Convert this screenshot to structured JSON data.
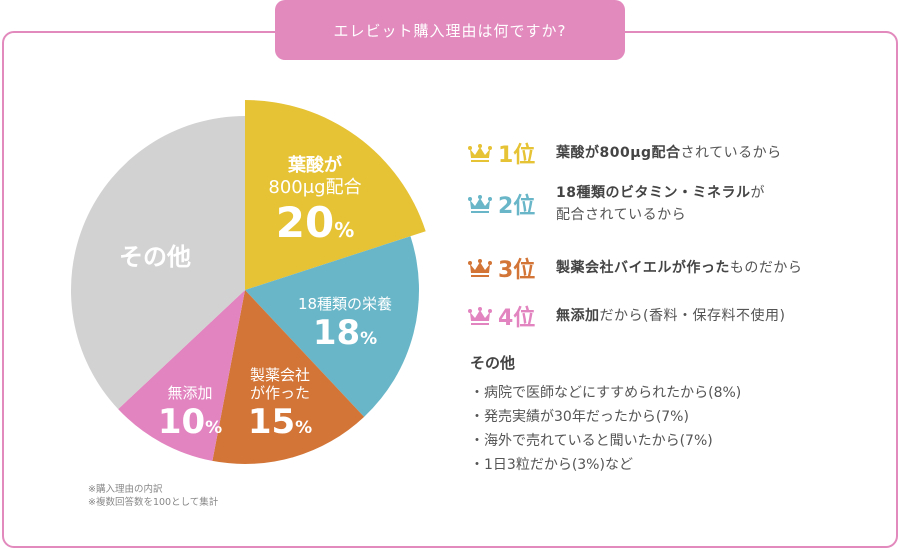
{
  "title": "エレビット購入理由は何ですか?",
  "chart_data": {
    "type": "pie",
    "start": "12 o'clock, clockwise",
    "slices": [
      {
        "label_lines": [
          "葉酸が",
          "800μg配合"
        ],
        "value": 20,
        "pct": "20",
        "color": "#e6c235",
        "exploded": true
      },
      {
        "label_lines": [
          "18種類の栄養"
        ],
        "value": 18,
        "pct": "18",
        "color": "#68b6c8"
      },
      {
        "label_lines": [
          "製薬会社",
          "が作った"
        ],
        "value": 15,
        "pct": "15",
        "color": "#d27537"
      },
      {
        "label_lines": [
          "無添加"
        ],
        "value": 10,
        "pct": "10",
        "color": "#e284bf"
      },
      {
        "label_lines": [
          "その他"
        ],
        "value": 37,
        "color": "#d2d2d2"
      }
    ],
    "unit": "%"
  },
  "ranking": [
    {
      "rank": "1位",
      "color": "#e6c235",
      "bold": "葉酸が800μg配合",
      "rest": "されているから"
    },
    {
      "rank": "2位",
      "color": "#68b6c8",
      "bold": "18種類のビタミン・ミネラル",
      "rest": "が",
      "line2": "配合されているから"
    },
    {
      "rank": "3位",
      "color": "#d27537",
      "bold": "製薬会社バイエルが作った",
      "rest": "ものだから"
    },
    {
      "rank": "4位",
      "color": "#e284bf",
      "bold": "無添加",
      "rest": "だから(香料・保存料不使用)"
    }
  ],
  "other": {
    "heading": "その他",
    "items": [
      "・病院で医師などにすすめられたから(8%)",
      "・発売実績が30年だったから(7%)",
      "・海外で売れていると聞いたから(7%)",
      "・1日3粒だから(3%)など"
    ]
  },
  "notes": [
    "※購入理由の内訳",
    "※複数回答数を100として集計"
  ]
}
